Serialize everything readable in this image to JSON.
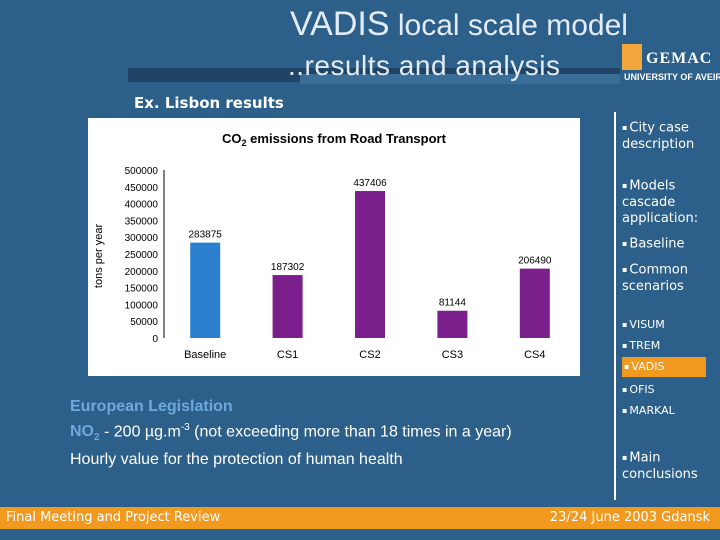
{
  "slide": {
    "title_part1": "VADIS",
    "title_part2": " local scale model",
    "title_line2": "..results and analysis",
    "subtitle": "Ex. Lisbon results"
  },
  "logo": {
    "name": "GEMAC",
    "institution": "UNIVERSITY OF AVEIRO"
  },
  "chart_data": {
    "type": "bar",
    "title_text": "CO",
    "title_sub": "2",
    "title_rest": " emissions from Road Transport",
    "ylabel": "tons per year",
    "categories": [
      "Baseline",
      "CS1",
      "CS2",
      "CS3",
      "CS4"
    ],
    "values": [
      283875,
      187302,
      437406,
      81144,
      206490
    ],
    "value_labels": [
      "283875",
      "187302",
      "437406",
      "81144",
      "206490"
    ],
    "colors": [
      "#2a7fcf",
      "#7b1f8c",
      "#7b1f8c",
      "#7b1f8c",
      "#7b1f8c"
    ],
    "ylim": [
      0,
      500000
    ],
    "yticks": [
      0,
      50000,
      100000,
      150000,
      200000,
      250000,
      300000,
      350000,
      400000,
      450000,
      500000
    ],
    "grid": false,
    "legend": "none"
  },
  "legislation": {
    "heading": "European Legislation",
    "no2_label": "NO",
    "no2_sub": "2",
    "limit": " - 200 µg.m",
    "exp": "-3",
    "condition": "  (not exceeding more than 18 times in a year)",
    "line3": "Hourly value for the protection of human health"
  },
  "sidebar": {
    "bullet": "▪",
    "items": [
      {
        "label": "City case description"
      },
      {
        "label": "Models cascade application:"
      },
      {
        "label": "Baseline"
      },
      {
        "label": "Common scenarios"
      },
      {
        "label": "VISUM"
      },
      {
        "label": "TREM"
      },
      {
        "label": "VADIS"
      },
      {
        "label": "OFIS"
      },
      {
        "label": "MARKAL"
      },
      {
        "label": "Main conclusions"
      }
    ]
  },
  "footer": {
    "left": "Final Meeting and Project Review",
    "right": "23/24 June 2003 Gdansk"
  }
}
